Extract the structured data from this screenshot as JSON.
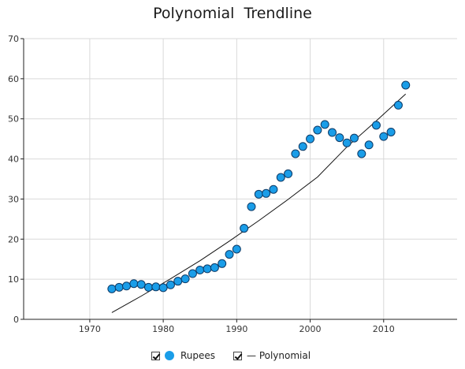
{
  "colors": {
    "point_fill": "#1a9de8",
    "point_stroke": "#0d3a66",
    "trend": "#111111",
    "grid": "#d9d9d9",
    "axis": "#222222"
  },
  "chart_data": {
    "type": "scatter",
    "title": "Polynomial  Trendline",
    "xlabel": "",
    "ylabel": "",
    "xlim": [
      1961,
      2020
    ],
    "ylim": [
      0,
      70
    ],
    "x_ticks": [
      1970,
      1980,
      1990,
      2000,
      2010
    ],
    "y_ticks": [
      0,
      10,
      20,
      30,
      40,
      50,
      60,
      70
    ],
    "grid": true,
    "legend_position": "bottom",
    "series": [
      {
        "name": "Rupees",
        "marker": "circle",
        "x": [
          1973,
          1974,
          1975,
          1976,
          1977,
          1978,
          1979,
          1980,
          1981,
          1982,
          1983,
          1984,
          1985,
          1986,
          1987,
          1988,
          1989,
          1990,
          1991,
          1992,
          1993,
          1994,
          1995,
          1996,
          1997,
          1998,
          1999,
          2000,
          2001,
          2002,
          2003,
          2004,
          2005,
          2006,
          2007,
          2008,
          2009,
          2010,
          2011,
          2012,
          2013
        ],
        "y": [
          7.6,
          8.0,
          8.3,
          8.9,
          8.7,
          8.0,
          8.1,
          7.9,
          8.6,
          9.5,
          10.1,
          11.4,
          12.3,
          12.6,
          12.9,
          13.9,
          16.2,
          17.5,
          22.7,
          28.1,
          31.2,
          31.4,
          32.4,
          35.4,
          36.3,
          41.3,
          43.1,
          45.0,
          47.2,
          48.6,
          46.6,
          45.3,
          44.0,
          45.2,
          41.3,
          43.5,
          48.4,
          45.6,
          46.7,
          53.4,
          58.4
        ]
      },
      {
        "name": "Polynomial",
        "type": "line",
        "x": [
          1973,
          1977,
          1981,
          1985,
          1989,
          1993,
          1997,
          2001,
          2005,
          2009,
          2013
        ],
        "y": [
          1.7,
          5.8,
          10.1,
          14.6,
          19.5,
          24.6,
          29.9,
          35.5,
          43.0,
          49.5,
          56.2
        ]
      }
    ]
  },
  "legend": {
    "items": [
      {
        "label": "Rupees",
        "checked": true
      },
      {
        "label": "— Polynomial",
        "checked": true
      }
    ]
  }
}
